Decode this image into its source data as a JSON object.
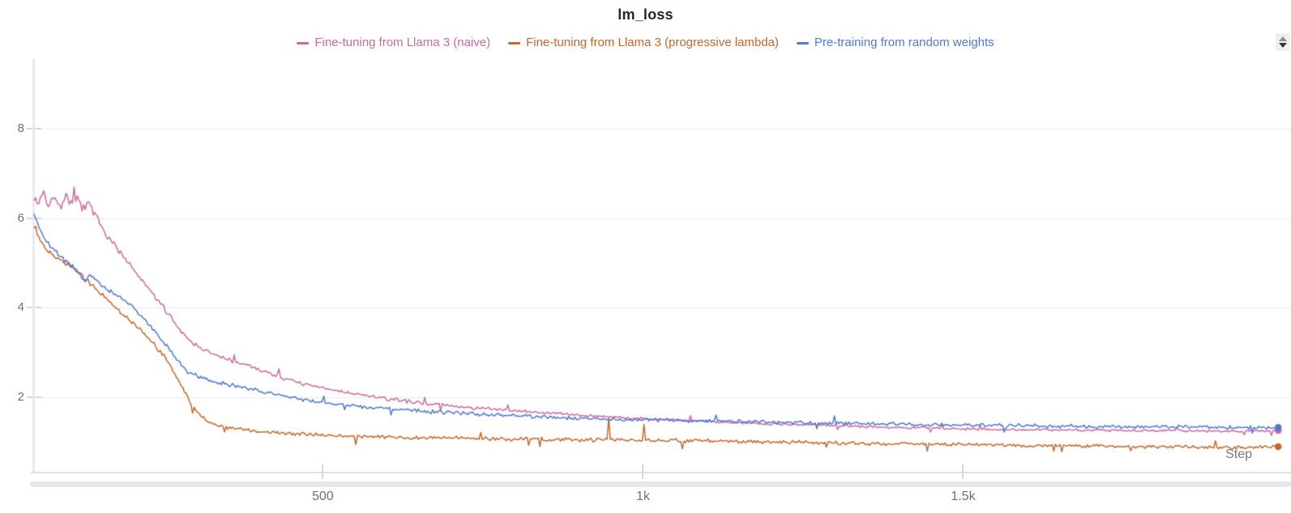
{
  "panel": {
    "title": "lm_loss",
    "x_axis_label": "Step"
  },
  "chart_data": {
    "type": "line",
    "title": "lm_loss",
    "xlabel": "Step",
    "ylabel": "",
    "grid": "horizontal",
    "legend_position": "top",
    "xlim": [
      49,
      2012
    ],
    "ylim": [
      0.34,
      9.55
    ],
    "x_ticks": [
      {
        "value": 500,
        "label": "500"
      },
      {
        "value": 1000,
        "label": "1k"
      },
      {
        "value": 1500,
        "label": "1.5k"
      }
    ],
    "y_ticks": [
      {
        "value": 2,
        "label": "2"
      },
      {
        "value": 4,
        "label": "4"
      },
      {
        "value": 6,
        "label": "6"
      },
      {
        "value": 8,
        "label": "8"
      }
    ],
    "series": [
      {
        "name": "Fine-tuning from Llama 3 (naive)",
        "color": "#cd6a9b",
        "end_dot": true,
        "points": [
          [
            49,
            6.5
          ],
          [
            56,
            6.3
          ],
          [
            63,
            6.62
          ],
          [
            72,
            6.25
          ],
          [
            81,
            6.5
          ],
          [
            90,
            6.22
          ],
          [
            99,
            6.48
          ],
          [
            108,
            6.25
          ],
          [
            117,
            6.42
          ],
          [
            126,
            6.2
          ],
          [
            135,
            6.3
          ],
          [
            144,
            6.05
          ],
          [
            156,
            5.78
          ],
          [
            170,
            5.5
          ],
          [
            185,
            5.2
          ],
          [
            200,
            4.92
          ],
          [
            215,
            4.65
          ],
          [
            230,
            4.38
          ],
          [
            245,
            4.12
          ],
          [
            260,
            3.85
          ],
          [
            275,
            3.55
          ],
          [
            290,
            3.3
          ],
          [
            305,
            3.15
          ],
          [
            322,
            3.0
          ],
          [
            340,
            2.9
          ],
          [
            365,
            2.78
          ],
          [
            390,
            2.68
          ],
          [
            420,
            2.52
          ],
          [
            450,
            2.38
          ],
          [
            480,
            2.26
          ],
          [
            510,
            2.18
          ],
          [
            540,
            2.1
          ],
          [
            575,
            2.02
          ],
          [
            610,
            1.95
          ],
          [
            645,
            1.89
          ],
          [
            680,
            1.84
          ],
          [
            715,
            1.79
          ],
          [
            750,
            1.75
          ],
          [
            790,
            1.71
          ],
          [
            830,
            1.67
          ],
          [
            875,
            1.63
          ],
          [
            920,
            1.59
          ],
          [
            965,
            1.55
          ],
          [
            1010,
            1.52
          ],
          [
            1060,
            1.49
          ],
          [
            1120,
            1.45
          ],
          [
            1200,
            1.41
          ],
          [
            1280,
            1.38
          ],
          [
            1360,
            1.34
          ],
          [
            1440,
            1.32
          ],
          [
            1520,
            1.29
          ],
          [
            1600,
            1.28
          ],
          [
            1680,
            1.27
          ],
          [
            1760,
            1.26
          ],
          [
            1840,
            1.25
          ],
          [
            1920,
            1.25
          ],
          [
            1992,
            1.26
          ]
        ],
        "noise": [
          [
            49,
            0.12
          ],
          [
            140,
            0.12
          ],
          [
            200,
            0.07
          ],
          [
            400,
            0.05
          ],
          [
            700,
            0.045
          ],
          [
            1000,
            0.035
          ],
          [
            1992,
            0.03
          ]
        ],
        "spike_prob": 0.02,
        "spike_up_bias": 0.8
      },
      {
        "name": "Fine-tuning from Llama 3 (progressive lambda)",
        "color": "#c7662a",
        "end_dot": true,
        "points": [
          [
            49,
            5.78
          ],
          [
            58,
            5.52
          ],
          [
            68,
            5.32
          ],
          [
            80,
            5.18
          ],
          [
            92,
            5.05
          ],
          [
            105,
            4.92
          ],
          [
            118,
            4.78
          ],
          [
            132,
            4.6
          ],
          [
            146,
            4.42
          ],
          [
            160,
            4.22
          ],
          [
            175,
            4.02
          ],
          [
            190,
            3.82
          ],
          [
            205,
            3.65
          ],
          [
            220,
            3.45
          ],
          [
            235,
            3.2
          ],
          [
            250,
            2.95
          ],
          [
            262,
            2.7
          ],
          [
            274,
            2.4
          ],
          [
            285,
            2.1
          ],
          [
            296,
            1.82
          ],
          [
            308,
            1.6
          ],
          [
            320,
            1.47
          ],
          [
            335,
            1.38
          ],
          [
            355,
            1.32
          ],
          [
            380,
            1.27
          ],
          [
            410,
            1.23
          ],
          [
            445,
            1.2
          ],
          [
            480,
            1.17
          ],
          [
            515,
            1.15
          ],
          [
            549,
            1.13
          ],
          [
            551,
            0.84
          ],
          [
            553,
            1.13
          ],
          [
            590,
            1.11
          ],
          [
            630,
            1.1
          ],
          [
            670,
            1.09
          ],
          [
            710,
            1.1
          ],
          [
            750,
            1.08
          ],
          [
            790,
            1.07
          ],
          [
            830,
            1.07
          ],
          [
            875,
            1.06
          ],
          [
            920,
            1.05
          ],
          [
            944,
            1.06
          ],
          [
            946,
            1.72
          ],
          [
            948,
            1.06
          ],
          [
            999,
            1.05
          ],
          [
            1001,
            1.5
          ],
          [
            1003,
            1.05
          ],
          [
            1040,
            1.04
          ],
          [
            1059,
            1.03
          ],
          [
            1061,
            0.78
          ],
          [
            1063,
            1.03
          ],
          [
            1100,
            1.03
          ],
          [
            1160,
            1.01
          ],
          [
            1220,
            1.0
          ],
          [
            1290,
            0.99
          ],
          [
            1360,
            0.97
          ],
          [
            1430,
            0.96
          ],
          [
            1500,
            0.95
          ],
          [
            1570,
            0.93
          ],
          [
            1640,
            0.92
          ],
          [
            1710,
            0.91
          ],
          [
            1780,
            0.9
          ],
          [
            1850,
            0.89
          ],
          [
            1920,
            0.88
          ],
          [
            1992,
            0.9
          ]
        ],
        "noise": [
          [
            49,
            0.06
          ],
          [
            300,
            0.05
          ],
          [
            600,
            0.05
          ],
          [
            1992,
            0.045
          ]
        ],
        "spike_prob": 0.012,
        "spike_up_bias": 0.3
      },
      {
        "name": "Pre-training from random weights",
        "color": "#5078d4",
        "end_dot": true,
        "points": [
          [
            49,
            6.1
          ],
          [
            56,
            5.82
          ],
          [
            64,
            5.58
          ],
          [
            74,
            5.38
          ],
          [
            86,
            5.2
          ],
          [
            98,
            5.05
          ],
          [
            110,
            4.92
          ],
          [
            120,
            4.8
          ],
          [
            127,
            4.58
          ],
          [
            136,
            4.72
          ],
          [
            150,
            4.55
          ],
          [
            165,
            4.4
          ],
          [
            180,
            4.26
          ],
          [
            200,
            4.05
          ],
          [
            220,
            3.75
          ],
          [
            240,
            3.45
          ],
          [
            258,
            3.12
          ],
          [
            272,
            2.82
          ],
          [
            289,
            2.58
          ],
          [
            308,
            2.46
          ],
          [
            330,
            2.36
          ],
          [
            355,
            2.28
          ],
          [
            390,
            2.18
          ],
          [
            430,
            2.06
          ],
          [
            470,
            1.95
          ],
          [
            510,
            1.86
          ],
          [
            550,
            1.81
          ],
          [
            590,
            1.76
          ],
          [
            630,
            1.72
          ],
          [
            670,
            1.68
          ],
          [
            710,
            1.65
          ],
          [
            750,
            1.62
          ],
          [
            800,
            1.59
          ],
          [
            850,
            1.56
          ],
          [
            900,
            1.53
          ],
          [
            950,
            1.51
          ],
          [
            1000,
            1.5
          ],
          [
            1060,
            1.48
          ],
          [
            1120,
            1.47
          ],
          [
            1200,
            1.45
          ],
          [
            1280,
            1.43
          ],
          [
            1360,
            1.41
          ],
          [
            1440,
            1.39
          ],
          [
            1520,
            1.38
          ],
          [
            1600,
            1.37
          ],
          [
            1680,
            1.35
          ],
          [
            1760,
            1.34
          ],
          [
            1840,
            1.34
          ],
          [
            1920,
            1.33
          ],
          [
            1992,
            1.33
          ]
        ],
        "noise": [
          [
            49,
            0.07
          ],
          [
            200,
            0.06
          ],
          [
            500,
            0.05
          ],
          [
            900,
            0.05
          ],
          [
            1992,
            0.05
          ]
        ],
        "spike_prob": 0.012,
        "spike_up_bias": 0.5
      }
    ]
  },
  "controls": {
    "resize_icon": "up-down-arrows"
  },
  "style": {
    "grid_color": "#ededf0",
    "axis_color": "#e0e0e3",
    "tick_color": "#d8d8db",
    "tick_label_color": "#6e7077",
    "title_color": "#24262b"
  }
}
